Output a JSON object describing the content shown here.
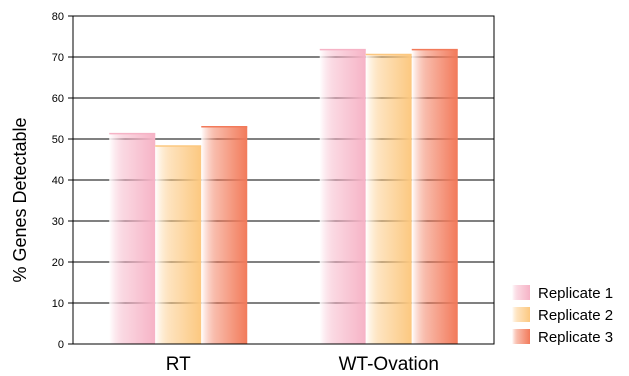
{
  "chart_data": {
    "type": "bar",
    "title": "",
    "xlabel": "",
    "ylabel": "% Genes Detectable",
    "categories": [
      "RT",
      "WT-Ovation"
    ],
    "ylim": [
      0,
      80
    ],
    "yticks": [
      0,
      10,
      20,
      30,
      40,
      50,
      60,
      70,
      80
    ],
    "grid": true,
    "legend_position": "bottom-right",
    "series": [
      {
        "name": "Replicate 1",
        "values": [
          51.3,
          71.8
        ],
        "color": "#f6b3c6"
      },
      {
        "name": "Replicate 2",
        "values": [
          48.3,
          70.6
        ],
        "color": "#fcc880"
      },
      {
        "name": "Replicate 3",
        "values": [
          53.0,
          71.8
        ],
        "color": "#f27a5a"
      }
    ]
  }
}
